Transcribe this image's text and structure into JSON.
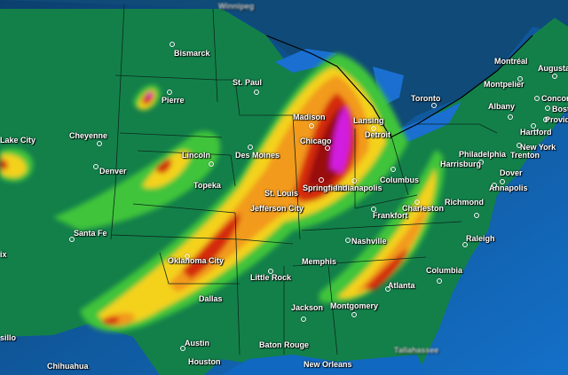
{
  "map": {
    "type": "precipitation forecast map",
    "colors": {
      "ocean": "#0e5fa8",
      "canada": "#0f4a78",
      "land": "#13804a",
      "light_green": "#3fc43a",
      "yellow": "#f4d21c",
      "orange": "#f29a1c",
      "red": "#d42a10",
      "dark_red": "#9a0e10",
      "magenta": "#d21ee0"
    },
    "cities": [
      "Winnipeg",
      "Bismarck",
      "Pierre",
      "St. Paul",
      "Cheyenne",
      "Lake City",
      "Denver",
      "Lincoln",
      "Des Moines",
      "Topeka",
      "Madison",
      "Lansing",
      "Chicago",
      "Detroit",
      "Springfield",
      "Indianapolis",
      "Columbus",
      "Toronto",
      "Montréal",
      "Montpelier",
      "Augusta",
      "Albany",
      "Concord",
      "Boston",
      "Providence",
      "Hartford",
      "New York",
      "Trenton",
      "Philadelphia",
      "Harrisburg",
      "Dover",
      "Annapolis",
      "St. Louis",
      "Jefferson City",
      "Frankfort",
      "Charleston",
      "Richmond",
      "Nashville",
      "Raleigh",
      "Memphis",
      "Little Rock",
      "Columbia",
      "Atlanta",
      "Jackson",
      "Montgomery",
      "Santa Fe",
      "Oklahoma City",
      "Dallas",
      "Austin",
      "Houston",
      "Baton Rouge",
      "New Orleans",
      "Tallahassee",
      "Chihuahua",
      "sillo",
      "ix"
    ]
  }
}
